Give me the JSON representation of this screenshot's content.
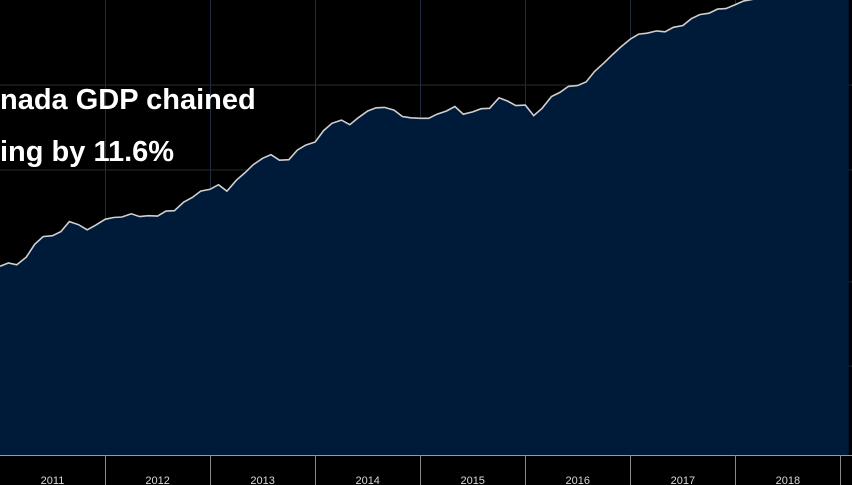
{
  "chart_data": {
    "type": "area",
    "title_lines": [
      "nada GDP chained",
      "ing by 11.6%"
    ],
    "xlabel": "",
    "ylabel": "",
    "x_ticks": [
      "2011",
      "2012",
      "2013",
      "2014",
      "2015",
      "2016",
      "2017",
      "2018"
    ],
    "xlim": [
      2010.92,
      2019.03
    ],
    "ylim": [
      0,
      100
    ],
    "grid": true,
    "legend": "none",
    "colors": {
      "fill": "#001a3a",
      "line": "#cfcfcf",
      "grid": "#2a2a2a",
      "background": "#000000"
    },
    "x": [
      2010.92,
      2011.0,
      2011.08,
      2011.17,
      2011.25,
      2011.33,
      2011.42,
      2011.5,
      2011.58,
      2011.67,
      2011.75,
      2011.83,
      2011.92,
      2012.0,
      2012.08,
      2012.17,
      2012.25,
      2012.33,
      2012.42,
      2012.5,
      2012.58,
      2012.67,
      2012.75,
      2012.83,
      2012.92,
      2013.0,
      2013.08,
      2013.17,
      2013.25,
      2013.33,
      2013.42,
      2013.5,
      2013.58,
      2013.67,
      2013.75,
      2013.83,
      2013.92,
      2014.0,
      2014.08,
      2014.17,
      2014.25,
      2014.33,
      2014.42,
      2014.5,
      2014.58,
      2014.67,
      2014.75,
      2014.83,
      2014.92,
      2015.0,
      2015.08,
      2015.17,
      2015.25,
      2015.33,
      2015.42,
      2015.5,
      2015.58,
      2015.67,
      2015.75,
      2015.83,
      2015.92,
      2016.0,
      2016.08,
      2016.17,
      2016.25,
      2016.33,
      2016.42,
      2016.5,
      2016.58,
      2016.67,
      2016.75,
      2016.83,
      2016.92,
      2017.0,
      2017.08,
      2017.17,
      2017.25,
      2017.33,
      2017.42,
      2017.5,
      2017.58,
      2017.67,
      2017.75,
      2017.83,
      2017.92,
      2018.0,
      2018.08,
      2018.17,
      2018.25,
      2018.33,
      2018.42,
      2018.5,
      2018.58,
      2018.67,
      2018.75,
      2018.83,
      2018.92,
      2019.0
    ],
    "values": [
      41.5,
      42.2,
      41.8,
      43.5,
      46.3,
      48.0,
      48.2,
      49.1,
      51.3,
      50.6,
      49.5,
      50.5,
      51.8,
      52.2,
      52.3,
      53.0,
      52.4,
      52.6,
      52.5,
      53.6,
      53.7,
      55.6,
      56.6,
      58.0,
      58.4,
      59.4,
      58.0,
      60.4,
      62.0,
      63.8,
      65.2,
      66.0,
      64.8,
      64.9,
      67.0,
      68.1,
      68.8,
      71.3,
      72.9,
      73.6,
      72.6,
      74.1,
      75.6,
      76.3,
      76.4,
      75.8,
      74.4,
      74.1,
      74.0,
      74.0,
      74.9,
      75.6,
      76.6,
      74.9,
      75.4,
      76.1,
      76.2,
      78.5,
      77.8,
      76.8,
      76.9,
      74.6,
      76.2,
      78.8,
      79.7,
      81.0,
      81.2,
      82.0,
      84.3,
      86.2,
      88.0,
      89.7,
      91.4,
      92.5,
      92.7,
      93.2,
      93.0,
      94.0,
      94.4,
      95.9,
      96.8,
      97.1,
      98.0,
      98.1,
      99.0,
      99.8,
      100.1,
      100.6,
      100.8,
      100.9,
      100.2,
      100.6,
      100.8,
      101.2,
      101.0,
      101.5,
      101.8,
      102.0
    ]
  }
}
